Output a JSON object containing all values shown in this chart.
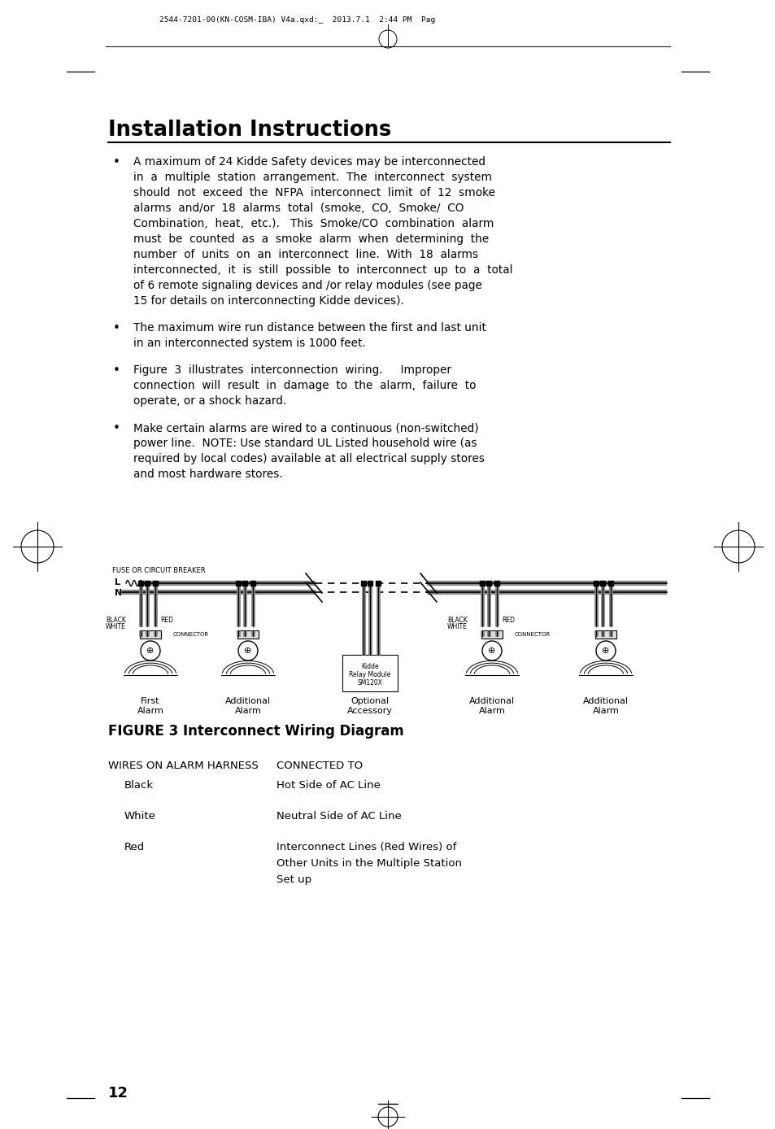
{
  "bg_color": "#ffffff",
  "header_text": "2544-7201-00(KN-COSM-IBA) V4a.qxd:_  2013.7.1  2:44 PM  Pag",
  "title": "Installation Instructions",
  "b1_line1": "A maximum of 24 Kidde Safety devices may be interconnected",
  "b1_line2": "in  a  multiple  station  arrangement.  The  interconnect  system",
  "b1_line3": "should  not  exceed  the  NFPA  interconnect  limit  of  12  smoke",
  "b1_line4": "alarms  and/or  18  alarms  total  (smoke,  CO,  Smoke/  CO",
  "b1_line5": "Combination,  heat,  etc.).   This  Smoke/CO  combination  alarm",
  "b1_line6": "must  be  counted  as  a  smoke  alarm  when  determining  the",
  "b1_line7": "number  of  units  on  an  interconnect  line.  With  18  alarms",
  "b1_line8": "interconnected,  it  is  still  possible  to  interconnect  up  to  a  total",
  "b1_line9": "of 6 remote signaling devices and /or relay modules (see page",
  "b1_line10": "15 for details on interconnecting Kidde devices).",
  "b2_line1": "The maximum wire run distance between the first and last unit",
  "b2_line2": "in an interconnected system is 1000 feet.",
  "b3_line1": "Figure  3  illustrates  interconnection  wiring.     Improper",
  "b3_line2": "connection  will  result  in  damage  to  the  alarm,  failure  to",
  "b3_line3": "operate, or a shock hazard.",
  "b4_line1": "Make certain alarms are wired to a continuous (non-switched)",
  "b4_line2": "power line.  NOTE: Use standard UL Listed household wire (as",
  "b4_line3": "required by local codes) available at all electrical supply stores",
  "b4_line4": "and most hardware stores.",
  "fuse_label": "FUSE OR CIRCUIT BREAKER",
  "figure_caption": "FIGURE 3 Interconnect Wiring Diagram",
  "col1_header": "WIRES ON ALARM HARNESS",
  "col2_header": "CONNECTED TO",
  "row1_label": "Black",
  "row1_value": "Hot Side of AC Line",
  "row2_label": "White",
  "row2_value": "Neutral Side of AC Line",
  "row3_label": "Red",
  "row3_val1": "Interconnect Lines (Red Wires) of",
  "row3_val2": "Other Units in the Multiple Station",
  "row3_val3": "Set up",
  "page_number": "12"
}
